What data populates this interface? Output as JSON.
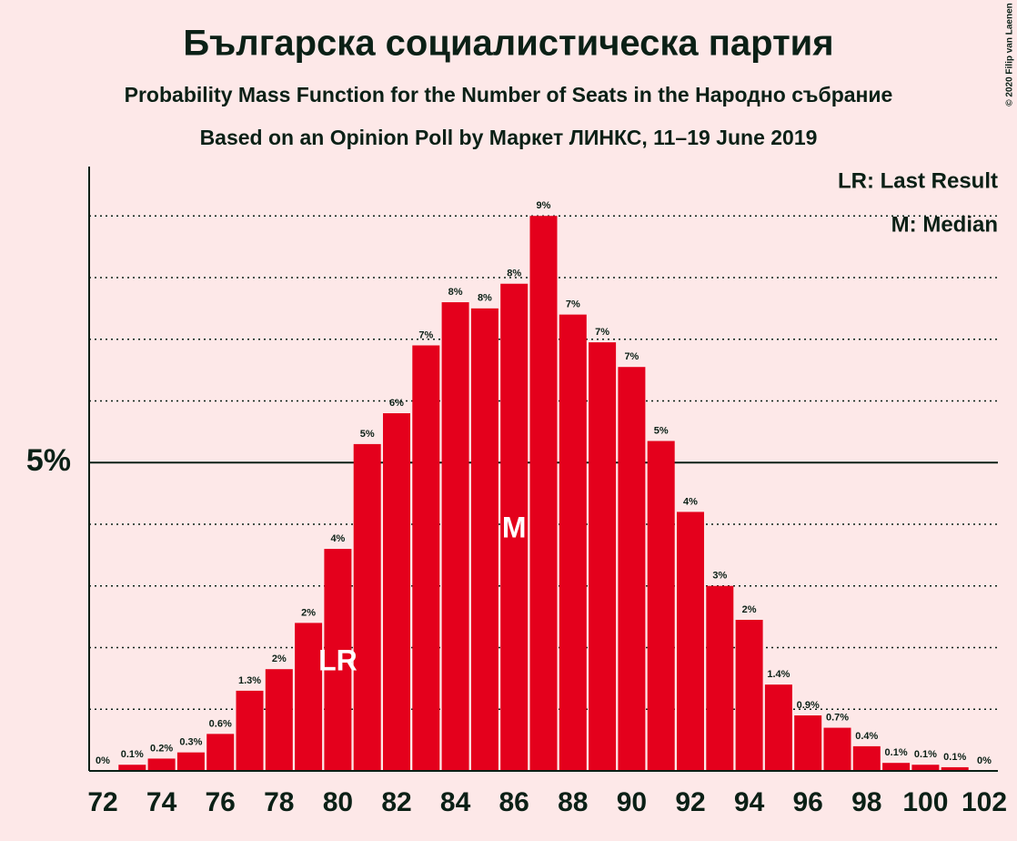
{
  "chart_data": {
    "type": "bar",
    "title": "Българска социалистическа партия",
    "subtitle": "Probability Mass Function for the Number of Seats in the Народно събрание",
    "subtitle2": "Based on an Opinion Poll by Маркет ЛИНКС, 11–19 June 2019",
    "copyright": "© 2020 Filip van Laenen",
    "legend": [
      "LR: Last Result",
      "M: Median"
    ],
    "annotations": [
      {
        "text": "LR",
        "at": 80
      },
      {
        "text": "M",
        "at": 86
      }
    ],
    "categories": [
      72,
      null,
      74,
      null,
      76,
      null,
      78,
      null,
      80,
      null,
      82,
      null,
      84,
      null,
      86,
      null,
      88,
      null,
      90,
      null,
      92,
      null,
      94,
      null,
      96,
      null,
      98,
      null,
      100,
      null,
      102
    ],
    "values": [
      0,
      0.1,
      0.2,
      0.3,
      0.6,
      1.3,
      1.65,
      2.4,
      3.6,
      5.3,
      5.8,
      6.9,
      7.6,
      7.5,
      7.9,
      9.0,
      7.4,
      6.95,
      6.55,
      5.35,
      4.2,
      3.0,
      2.45,
      1.4,
      0.9,
      0.7,
      0.4,
      0.13,
      0.1,
      0.06,
      0
    ],
    "value_labels": [
      "0%",
      "0.1%",
      "0.2%",
      "0.3%",
      "0.6%",
      "1.3%",
      "2%",
      "2%",
      "4%",
      "5%",
      "6%",
      "7%",
      "8%",
      "8%",
      "8%",
      "9%",
      "7%",
      "7%",
      "7%",
      "5%",
      "4%",
      "3%",
      "2%",
      "1.4%",
      "0.9%",
      "0.7%",
      "0.4%",
      "0.1%",
      "0.1%",
      "0.1%",
      "0%"
    ],
    "color": "#e4001c",
    "ylim": [
      0,
      9.8
    ],
    "yticks": [
      {
        "value": 5,
        "label": "5%"
      }
    ],
    "minor_yticks": [
      1,
      2,
      3,
      4,
      6,
      7,
      8,
      9
    ],
    "grid": true
  }
}
